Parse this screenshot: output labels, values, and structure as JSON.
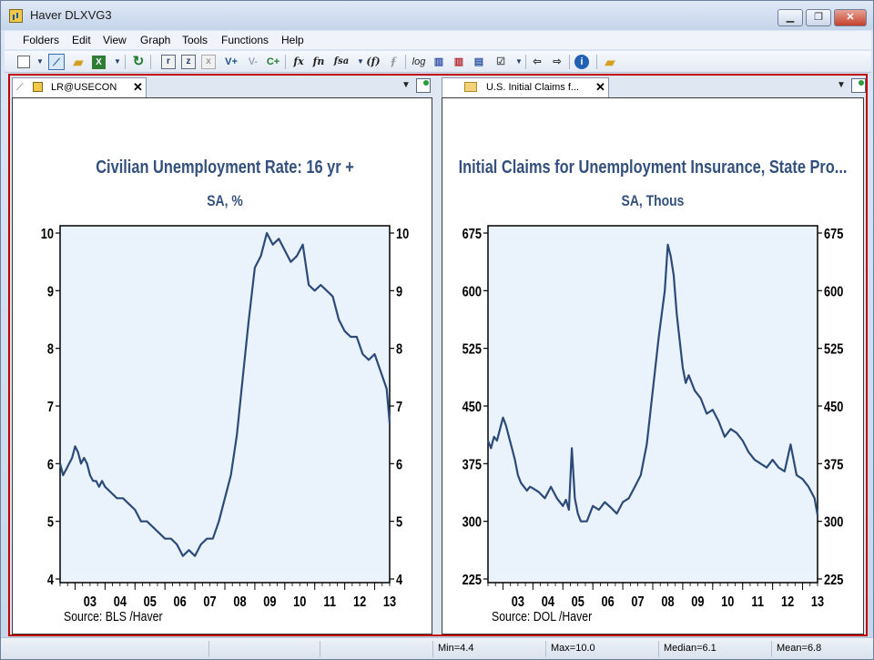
{
  "window": {
    "title": "Haver DLXVG3"
  },
  "menu": [
    "Folders",
    "Edit",
    "View",
    "Graph",
    "Tools",
    "Functions",
    "Help"
  ],
  "toolbar": {
    "letter_buttons": [
      "r",
      "z",
      "x"
    ],
    "v_plus": "V+",
    "v_minus": "V-",
    "c_plus": "C+",
    "fx": "fx",
    "fn": "fn",
    "fsa": "fsa",
    "f_paren": "(f)",
    "f_strike": "f",
    "log": "log"
  },
  "tabs": {
    "left": {
      "label": "LR@USECON",
      "close": "✕",
      "dropdown": "▼"
    },
    "right": {
      "label": "U.S. Initial Claims f...",
      "close": "✕",
      "dropdown": "▼"
    }
  },
  "status": {
    "min": "Min=4.4",
    "max": "Max=10.0",
    "median": "Median=6.1",
    "mean": "Mean=6.8"
  },
  "colors": {
    "line": "#2b4a78",
    "plot_bg": "#eaf3fc",
    "title": "#34507d",
    "accent_border": "#c00000"
  },
  "chart_data": [
    {
      "type": "line",
      "title": "Civilian Unemployment Rate: 16 yr +",
      "subtitle": "SA, %",
      "source": "Source:  BLS /Haver",
      "ylim": [
        4,
        10
      ],
      "yticks": [
        "4",
        "5",
        "6",
        "7",
        "8",
        "9",
        "10"
      ],
      "xticks": [
        "03",
        "04",
        "05",
        "06",
        "07",
        "08",
        "09",
        "10",
        "11",
        "12",
        "13"
      ],
      "xlim": [
        2002.5,
        2013.5
      ],
      "x": [
        2002.5,
        2002.6,
        2002.7,
        2002.8,
        2002.9,
        2003.0,
        2003.1,
        2003.2,
        2003.3,
        2003.4,
        2003.5,
        2003.6,
        2003.7,
        2003.8,
        2003.9,
        2004.0,
        2004.2,
        2004.4,
        2004.6,
        2004.8,
        2005.0,
        2005.2,
        2005.4,
        2005.6,
        2005.8,
        2006.0,
        2006.2,
        2006.4,
        2006.6,
        2006.8,
        2007.0,
        2007.2,
        2007.4,
        2007.6,
        2007.8,
        2008.0,
        2008.2,
        2008.4,
        2008.6,
        2008.8,
        2009.0,
        2009.2,
        2009.4,
        2009.6,
        2009.8,
        2010.0,
        2010.2,
        2010.4,
        2010.6,
        2010.8,
        2011.0,
        2011.2,
        2011.4,
        2011.6,
        2011.8,
        2012.0,
        2012.2,
        2012.4,
        2012.6,
        2012.8,
        2013.0,
        2013.2,
        2013.4,
        2013.5
      ],
      "y": [
        6.0,
        5.8,
        5.9,
        6.0,
        6.1,
        6.3,
        6.2,
        6.0,
        6.1,
        6.0,
        5.8,
        5.7,
        5.7,
        5.6,
        5.7,
        5.6,
        5.5,
        5.4,
        5.4,
        5.3,
        5.2,
        5.0,
        5.0,
        4.9,
        4.8,
        4.7,
        4.7,
        4.6,
        4.4,
        4.5,
        4.4,
        4.6,
        4.7,
        4.7,
        5.0,
        5.4,
        5.8,
        6.5,
        7.5,
        8.5,
        9.4,
        9.6,
        10.0,
        9.8,
        9.9,
        9.7,
        9.5,
        9.6,
        9.8,
        9.1,
        9.0,
        9.1,
        9.0,
        8.9,
        8.5,
        8.3,
        8.2,
        8.2,
        7.9,
        7.8,
        7.9,
        7.6,
        7.3,
        6.7
      ]
    },
    {
      "type": "line",
      "title": "Initial Claims for Unemployment Insurance, State Pro...",
      "subtitle": "SA, Thous",
      "source": "Source:  DOL /Haver",
      "ylim": [
        225,
        675
      ],
      "yticks": [
        "225",
        "300",
        "375",
        "450",
        "525",
        "600",
        "675"
      ],
      "xticks": [
        "03",
        "04",
        "05",
        "06",
        "07",
        "08",
        "09",
        "10",
        "11",
        "12",
        "13"
      ],
      "xlim": [
        2002.5,
        2013.5
      ],
      "x": [
        2002.5,
        2002.6,
        2002.7,
        2002.8,
        2002.9,
        2003.0,
        2003.1,
        2003.2,
        2003.3,
        2003.4,
        2003.5,
        2003.6,
        2003.7,
        2003.8,
        2003.9,
        2004.0,
        2004.2,
        2004.4,
        2004.6,
        2004.8,
        2005.0,
        2005.1,
        2005.2,
        2005.3,
        2005.4,
        2005.5,
        2005.6,
        2005.8,
        2006.0,
        2006.2,
        2006.4,
        2006.6,
        2006.8,
        2007.0,
        2007.2,
        2007.4,
        2007.6,
        2007.8,
        2008.0,
        2008.2,
        2008.4,
        2008.5,
        2008.6,
        2008.7,
        2008.8,
        2009.0,
        2009.1,
        2009.2,
        2009.4,
        2009.6,
        2009.8,
        2010.0,
        2010.2,
        2010.4,
        2010.6,
        2010.8,
        2011.0,
        2011.2,
        2011.4,
        2011.6,
        2011.8,
        2012.0,
        2012.2,
        2012.4,
        2012.6,
        2012.8,
        2013.0,
        2013.2,
        2013.4,
        2013.5
      ],
      "y": [
        405,
        395,
        410,
        405,
        420,
        435,
        425,
        410,
        395,
        380,
        360,
        350,
        345,
        340,
        345,
        343,
        338,
        330,
        345,
        330,
        320,
        328,
        315,
        395,
        330,
        310,
        300,
        300,
        320,
        315,
        325,
        318,
        310,
        325,
        330,
        345,
        360,
        400,
        470,
        540,
        600,
        660,
        645,
        620,
        570,
        500,
        480,
        490,
        470,
        460,
        440,
        445,
        430,
        410,
        420,
        415,
        405,
        390,
        380,
        375,
        370,
        380,
        370,
        365,
        400,
        360,
        355,
        345,
        330,
        308
      ]
    }
  ]
}
